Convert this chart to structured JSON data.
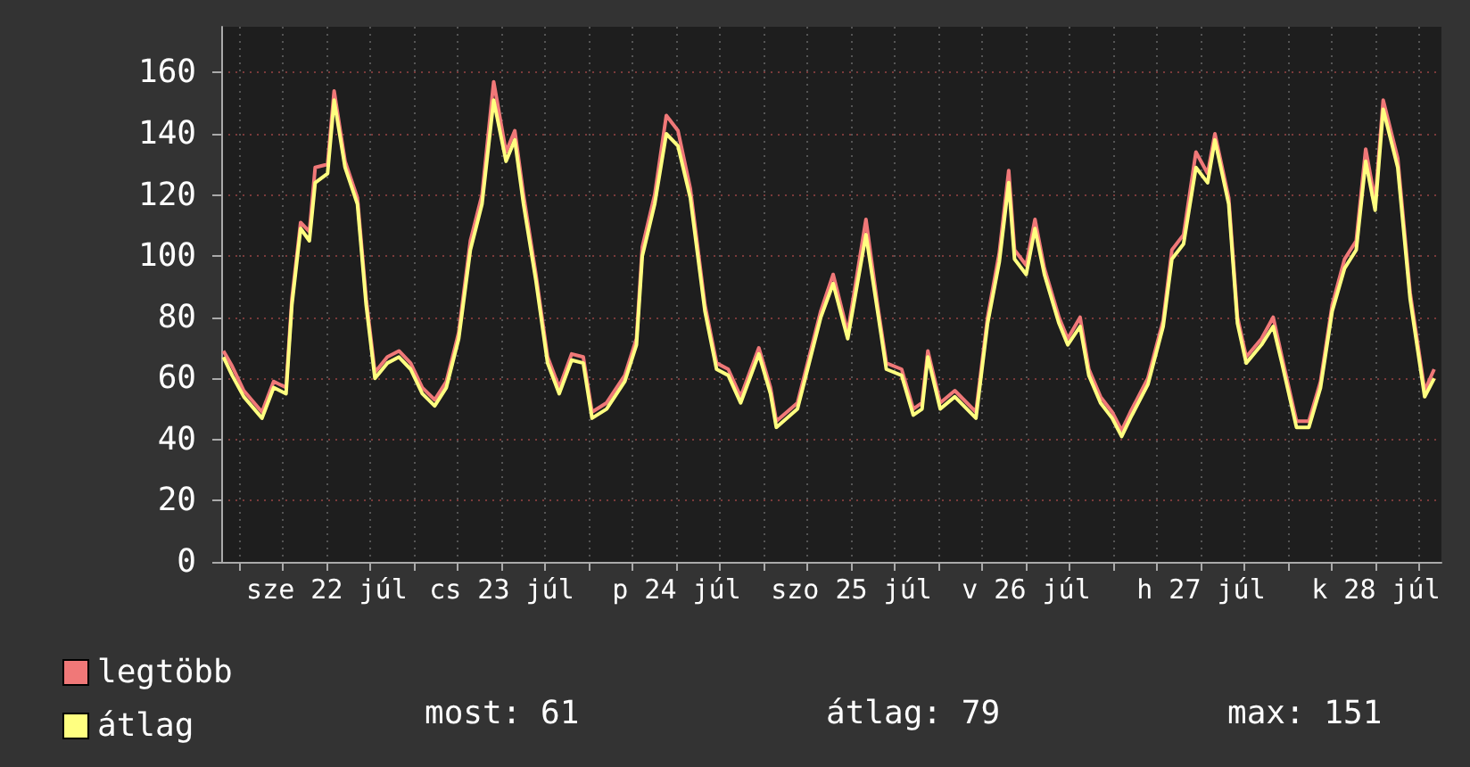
{
  "chart_data": {
    "type": "line",
    "x": [
      "--07-21T21:48",
      "--07-21T23:00",
      "--07-22T00:36",
      "--07-22T03:06",
      "--07-22T04:42",
      "--07-22T06:24",
      "--07-22T07:12",
      "--07-22T08:24",
      "--07-22T09:36",
      "--07-22T10:24",
      "--07-22T12:06",
      "--07-22T13:00",
      "--07-22T14:30",
      "--07-22T16:12",
      "--07-22T17:24",
      "--07-22T18:36",
      "--07-22T20:18",
      "--07-22T21:54",
      "--07-22T23:30",
      "--07-23T01:06",
      "--07-23T02:48",
      "--07-23T04:24",
      "--07-23T06:06",
      "--07-23T07:42",
      "--07-23T09:18",
      "--07-23T10:54",
      "--07-23T12:36",
      "--07-23T13:48",
      "--07-23T15:00",
      "--07-23T16:42",
      "--07-23T18:18",
      "--07-23T19:54",
      "--07-23T21:36",
      "--07-23T23:12",
      "--07-24T00:24",
      "--07-24T02:24",
      "--07-24T04:54",
      "--07-24T06:30",
      "--07-24T07:18",
      "--07-24T09:00",
      "--07-24T10:36",
      "--07-24T12:12",
      "--07-24T13:54",
      "--07-24T15:54",
      "--07-24T17:30",
      "--07-24T19:06",
      "--07-24T20:48",
      "--07-24T23:18",
      "--07-25T00:54",
      "--07-25T01:42",
      "--07-25T04:36",
      "--07-25T07:48",
      "--07-25T09:30",
      "--07-25T11:30",
      "--07-25T14:00",
      "--07-25T15:36",
      "--07-25T16:48",
      "--07-25T18:54",
      "--07-25T20:30",
      "--07-25T21:42",
      "--07-25T22:30",
      "--07-26T00:12",
      "--07-26T02:12",
      "--07-26T05:06",
      "--07-26T06:42",
      "--07-26T08:18",
      "--07-26T09:36",
      "--07-26T10:24",
      "--07-26T12:00",
      "--07-26T13:12",
      "--07-26T14:30",
      "--07-26T16:30",
      "--07-26T17:42",
      "--07-26T19:24",
      "--07-26T20:36",
      "--07-26T22:12",
      "--07-26T23:48",
      "--07-27T01:06",
      "--07-27T02:18",
      "--07-27T04:42",
      "--07-27T06:48",
      "--07-27T08:00",
      "--07-27T09:36",
      "--07-27T11:18",
      "--07-27T12:54",
      "--07-27T13:54",
      "--07-27T15:48",
      "--07-27T17:00",
      "--07-27T18:12",
      "--07-27T20:18",
      "--07-27T21:54",
      "--07-27T23:06",
      "--07-28T01:06",
      "--07-28T02:48",
      "--07-28T04:24",
      "--07-28T06:00",
      "--07-28T07:42",
      "--07-28T09:18",
      "--07-28T10:36",
      "--07-28T11:54",
      "--07-28T13:00",
      "--07-28T15:00",
      "--07-28T16:42",
      "--07-28T18:42",
      "--07-28T20:00"
    ],
    "series": [
      {
        "name": "legtöbb",
        "color": "#f07878",
        "values": [
          69,
          64,
          56,
          49,
          59,
          57,
          86,
          111,
          108,
          129,
          130,
          154,
          131,
          119,
          86,
          62,
          67,
          69,
          65,
          57,
          53,
          59,
          75,
          105,
          120,
          157,
          134,
          141,
          120,
          94,
          67,
          57,
          68,
          67,
          49,
          52,
          61,
          73,
          103,
          120,
          146,
          141,
          122,
          84,
          65,
          63,
          54,
          70,
          57,
          46,
          52,
          82,
          94,
          75,
          112,
          84,
          65,
          63,
          50,
          52,
          69,
          52,
          56,
          49,
          80,
          101,
          128,
          102,
          97,
          112,
          96,
          80,
          73,
          80,
          63,
          54,
          49,
          43,
          49,
          60,
          79,
          102,
          107,
          134,
          127,
          140,
          119,
          80,
          67,
          73,
          80,
          67,
          46,
          46,
          59,
          84,
          99,
          105,
          135,
          118,
          151,
          132,
          88,
          56,
          63
        ]
      },
      {
        "name": "átlag",
        "color": "#ffff80",
        "values": [
          67,
          61,
          54,
          47,
          57,
          55,
          84,
          109,
          105,
          124,
          127,
          151,
          129,
          117,
          84,
          60,
          65,
          67,
          63,
          55,
          51,
          57,
          73,
          102,
          117,
          151,
          131,
          138,
          117,
          92,
          65,
          55,
          66,
          65,
          47,
          50,
          59,
          71,
          100,
          117,
          140,
          136,
          119,
          82,
          63,
          61,
          52,
          68,
          55,
          44,
          50,
          80,
          91,
          73,
          107,
          82,
          63,
          61,
          48,
          50,
          67,
          50,
          54,
          47,
          78,
          98,
          124,
          99,
          94,
          109,
          94,
          78,
          71,
          77,
          61,
          52,
          47,
          41,
          47,
          58,
          77,
          99,
          104,
          129,
          124,
          138,
          117,
          78,
          65,
          71,
          77,
          65,
          44,
          44,
          57,
          82,
          96,
          102,
          131,
          115,
          148,
          129,
          86,
          54,
          60
        ]
      }
    ],
    "xlim": [
      "--07-21T21:30",
      "--07-28T21:00"
    ],
    "xticks": [
      {
        "value": "--07-22T00:00",
        "label": null
      },
      {
        "value": "--07-22T06:00",
        "label": null
      },
      {
        "value": "--07-22T12:00",
        "label": "sze 22 júl"
      },
      {
        "value": "--07-22T18:00",
        "label": null
      },
      {
        "value": "--07-23T00:00",
        "label": null
      },
      {
        "value": "--07-23T06:00",
        "label": null
      },
      {
        "value": "--07-23T12:00",
        "label": "cs 23 júl"
      },
      {
        "value": "--07-23T18:00",
        "label": null
      },
      {
        "value": "--07-24T00:00",
        "label": null
      },
      {
        "value": "--07-24T06:00",
        "label": null
      },
      {
        "value": "--07-24T12:00",
        "label": "p 24 júl"
      },
      {
        "value": "--07-24T18:00",
        "label": null
      },
      {
        "value": "--07-25T00:00",
        "label": null
      },
      {
        "value": "--07-25T06:00",
        "label": null
      },
      {
        "value": "--07-25T12:00",
        "label": "szo 25 júl"
      },
      {
        "value": "--07-25T18:00",
        "label": null
      },
      {
        "value": "--07-26T00:00",
        "label": null
      },
      {
        "value": "--07-26T06:00",
        "label": null
      },
      {
        "value": "--07-26T12:00",
        "label": "v 26 júl"
      },
      {
        "value": "--07-26T18:00",
        "label": null
      },
      {
        "value": "--07-27T00:00",
        "label": null
      },
      {
        "value": "--07-27T06:00",
        "label": null
      },
      {
        "value": "--07-27T12:00",
        "label": "h 27 júl"
      },
      {
        "value": "--07-27T18:00",
        "label": null
      },
      {
        "value": "--07-28T00:00",
        "label": null
      },
      {
        "value": "--07-28T06:00",
        "label": null
      },
      {
        "value": "--07-28T12:00",
        "label": "k 28 júl"
      },
      {
        "value": "--07-28T18:00",
        "label": null
      }
    ],
    "ylim": [
      0,
      175
    ],
    "yticks": [
      0,
      20,
      40,
      60,
      80,
      100,
      120,
      140,
      160
    ],
    "grid": true,
    "legend": "bottom left",
    "marker": "none",
    "line_style": "solid",
    "annotations": [
      "most: 61",
      "átlag: 79",
      "max: 151"
    ]
  }
}
